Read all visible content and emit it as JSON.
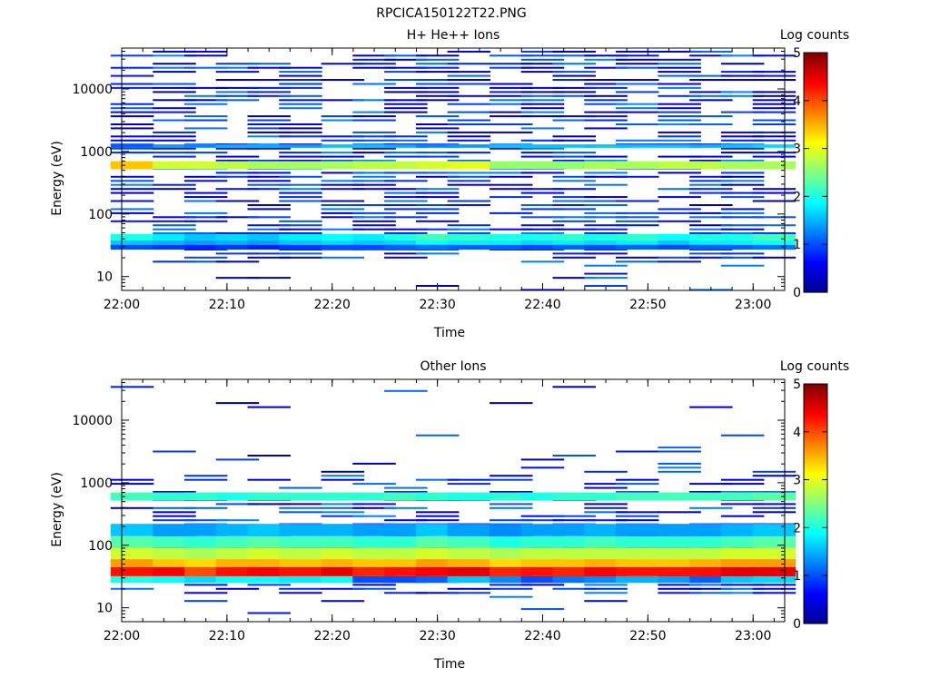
{
  "figure_title": "RPCICA150122T22.PNG",
  "palette": [
    "#00008f",
    "#0000ff",
    "#0080ff",
    "#00ffff",
    "#80ff80",
    "#ffff00",
    "#ff8000",
    "#ff0000",
    "#800000"
  ],
  "chart_data": [
    {
      "type": "heatmap",
      "title": "H+ He++ Ions",
      "xlabel": "Time",
      "ylabel": "Energy (eV)",
      "xlim": [
        "22:00",
        "23:03"
      ],
      "x_ticks": [
        "22:00",
        "22:10",
        "22:20",
        "22:30",
        "22:40",
        "22:50",
        "23:00"
      ],
      "ylim": [
        6,
        45000
      ],
      "y_scale": "log",
      "y_ticks": [
        10,
        100,
        1000,
        10000
      ],
      "y_tick_labels": [
        "10",
        "100",
        "1000",
        "10000"
      ],
      "time_bins": [
        "22:01",
        "22:05",
        "22:08",
        "22:11",
        "22:14",
        "22:17",
        "22:21",
        "22:24",
        "22:27",
        "22:30",
        "22:33",
        "22:37",
        "22:40",
        "22:43",
        "22:46",
        "22:49",
        "22:53",
        "22:56",
        "22:59",
        "23:02"
      ],
      "energy_bands": [
        {
          "low": 520,
          "high": 700,
          "log_counts": [
            3.4,
            2.9,
            2.9,
            2.8,
            2.7,
            2.7,
            2.7,
            2.8,
            2.8,
            2.9,
            3.0,
            2.6,
            2.6,
            2.6,
            2.7,
            2.7,
            2.8,
            2.8,
            2.7,
            2.7
          ]
        },
        {
          "low": 1150,
          "high": 1300,
          "log_counts": [
            1.1,
            1.4,
            1.3,
            1.5,
            1.5,
            1.4,
            1.6,
            1.6,
            1.5,
            1.3,
            1.4,
            1.6,
            1.6,
            1.6,
            1.6,
            1.6,
            1.6,
            1.5,
            1.6,
            1.7
          ]
        },
        {
          "low": 38,
          "high": 48,
          "log_counts": [
            2.0,
            1.8,
            1.6,
            1.7,
            1.6,
            1.8,
            1.9,
            1.8,
            2.0,
            2.2,
            2.1,
            2.0,
            2.0,
            2.1,
            2.0,
            2.1,
            1.9,
            2.0,
            2.0,
            2.2
          ]
        },
        {
          "low": 32,
          "high": 38,
          "log_counts": [
            1.6,
            1.5,
            1.4,
            1.5,
            1.4,
            1.6,
            1.7,
            1.6,
            1.7,
            1.9,
            1.8,
            1.8,
            1.7,
            1.8,
            1.7,
            1.8,
            1.6,
            1.8,
            1.8,
            1.9
          ]
        },
        {
          "low": 27,
          "high": 32,
          "log_counts": [
            1.0,
            0.9,
            0.8,
            0.9,
            0.8,
            0.9,
            1.0,
            1.0,
            1.1,
            1.2,
            1.1,
            1.1,
            1.0,
            1.1,
            1.0,
            1.1,
            1.0,
            1.1,
            1.1,
            1.2
          ]
        }
      ],
      "sparse_counts_note": "",
      "colorbar": {
        "label": "Log counts",
        "range": [
          0,
          5
        ],
        "ticks": [
          "0",
          "1",
          "2",
          "3",
          "4",
          "5"
        ]
      }
    },
    {
      "type": "heatmap",
      "title": "Other Ions",
      "xlabel": "Time",
      "ylabel": "Energy (eV)",
      "xlim": [
        "22:00",
        "23:03"
      ],
      "x_ticks": [
        "22:00",
        "22:10",
        "22:20",
        "22:30",
        "22:40",
        "22:50",
        "23:00"
      ],
      "ylim": [
        6,
        45000
      ],
      "y_scale": "log",
      "y_ticks": [
        10,
        100,
        1000,
        10000
      ],
      "y_tick_labels": [
        "10",
        "100",
        "1000",
        "10000"
      ],
      "time_bins": [
        "22:01",
        "22:05",
        "22:08",
        "22:11",
        "22:14",
        "22:17",
        "22:21",
        "22:24",
        "22:27",
        "22:30",
        "22:33",
        "22:37",
        "22:40",
        "22:43",
        "22:46",
        "22:49",
        "22:53",
        "22:56",
        "22:59",
        "23:02"
      ],
      "energy_bands": [
        {
          "low": 32,
          "high": 45,
          "log_counts": [
            4.3,
            4.4,
            4.0,
            4.3,
            4.4,
            4.3,
            4.5,
            4.2,
            4.3,
            4.4,
            4.5,
            4.2,
            4.3,
            4.2,
            4.4,
            4.3,
            4.3,
            4.3,
            4.5,
            4.5
          ]
        },
        {
          "low": 45,
          "high": 60,
          "log_counts": [
            3.6,
            3.4,
            3.3,
            3.5,
            3.5,
            3.4,
            3.5,
            3.4,
            3.4,
            3.6,
            3.5,
            3.3,
            3.4,
            3.4,
            3.5,
            3.4,
            3.4,
            3.5,
            3.6,
            3.6
          ]
        },
        {
          "low": 60,
          "high": 90,
          "log_counts": [
            2.9,
            2.8,
            2.7,
            2.8,
            2.9,
            2.8,
            2.9,
            2.8,
            2.8,
            2.9,
            2.8,
            2.7,
            2.8,
            2.8,
            2.8,
            2.8,
            2.8,
            2.8,
            2.9,
            2.9
          ]
        },
        {
          "low": 90,
          "high": 140,
          "log_counts": [
            2.3,
            2.2,
            2.1,
            2.2,
            2.3,
            2.2,
            2.2,
            2.1,
            2.1,
            2.3,
            2.2,
            2.0,
            2.1,
            2.1,
            2.2,
            2.1,
            2.1,
            2.1,
            2.2,
            2.3
          ]
        },
        {
          "low": 140,
          "high": 220,
          "log_counts": [
            1.6,
            1.4,
            1.4,
            1.5,
            1.6,
            1.5,
            1.5,
            1.4,
            1.4,
            1.6,
            1.4,
            1.3,
            1.4,
            1.4,
            1.5,
            1.4,
            1.4,
            1.4,
            1.5,
            1.6
          ]
        },
        {
          "low": 520,
          "high": 700,
          "log_counts": [
            2.2,
            2.1,
            2.1,
            2.0,
            2.1,
            2.1,
            2.1,
            2.1,
            2.2,
            2.1,
            2.0,
            2.1,
            2.0,
            2.1,
            2.1,
            2.2,
            2.2,
            2.2,
            2.2,
            2.3
          ]
        },
        {
          "low": 25,
          "high": 32,
          "log_counts": [
            2.0,
            1.9,
            1.7,
            1.9,
            1.9,
            1.8,
            1.9,
            1.0,
            1.0,
            1.1,
            1.6,
            1.3,
            1.0,
            1.2,
            1.3,
            1.5,
            1.4,
            1.1,
            1.6,
            1.7
          ]
        }
      ],
      "colorbar": {
        "label": "Log counts",
        "range": [
          0,
          5
        ],
        "ticks": [
          "0",
          "1",
          "2",
          "3",
          "4",
          "5"
        ]
      }
    }
  ]
}
